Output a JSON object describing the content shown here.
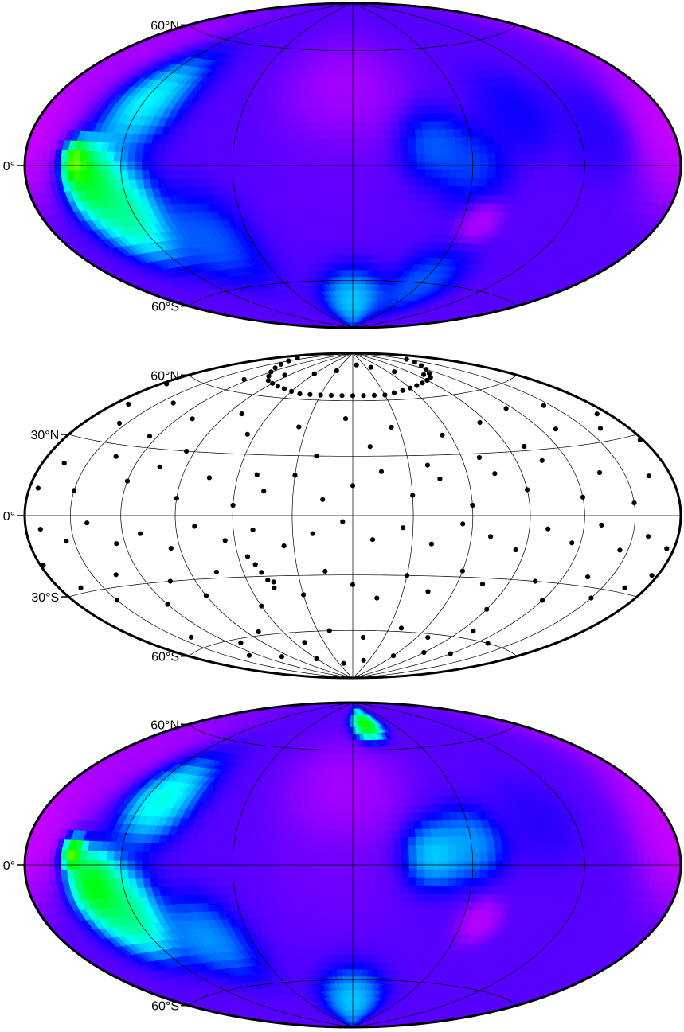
{
  "panels": [
    {
      "id": "top",
      "kind": "gridded-field",
      "lat_labels": [
        "60°N",
        "0°",
        "60°S"
      ],
      "label_lats": [
        60,
        0,
        -60
      ],
      "meridians_deg": [
        -120,
        -60,
        0,
        60,
        120
      ],
      "parallels_deg": [
        -60,
        0,
        60
      ],
      "palette": [
        "#ff00ff",
        "#8000ff",
        "#0000ff",
        "#00ffff",
        "#00ff00",
        "#ffff00",
        "#ff0000"
      ],
      "features": [
        {
          "lon": -175,
          "lat": 15,
          "value": 0.05,
          "spread": 18
        },
        {
          "lon": 175,
          "lat": 10,
          "value": 0.05,
          "spread": 18
        },
        {
          "lon": -160,
          "lat": 45,
          "value": 0.08,
          "spread": 20
        },
        {
          "lon": -148,
          "lat": 2,
          "value": 0.95,
          "spread": 7
        },
        {
          "lon": -140,
          "lat": -5,
          "value": 0.78,
          "spread": 13
        },
        {
          "lon": -125,
          "lat": -20,
          "value": 0.68,
          "spread": 18
        },
        {
          "lon": -120,
          "lat": 30,
          "value": 0.6,
          "spread": 18
        },
        {
          "lon": -85,
          "lat": -35,
          "value": 0.45,
          "spread": 18
        },
        {
          "lon": -5,
          "lat": 35,
          "value": 0.08,
          "spread": 22
        },
        {
          "lon": -10,
          "lat": 0,
          "value": 0.2,
          "spread": 24
        },
        {
          "lon": 40,
          "lat": 10,
          "value": 0.45,
          "spread": 14
        },
        {
          "lon": 60,
          "lat": 0,
          "value": 0.42,
          "spread": 15
        },
        {
          "lon": 90,
          "lat": 25,
          "value": 0.35,
          "spread": 15
        },
        {
          "lon": 70,
          "lat": -27,
          "value": 0.06,
          "spread": 8
        },
        {
          "lon": 130,
          "lat": 15,
          "value": 0.3,
          "spread": 15
        },
        {
          "lon": 0,
          "lat": -72,
          "value": 0.55,
          "spread": 15
        },
        {
          "lon": 60,
          "lat": -60,
          "value": 0.45,
          "spread": 15
        }
      ]
    },
    {
      "id": "middle",
      "kind": "station-points",
      "lat_labels": [
        "60°N",
        "30°N",
        "0°",
        "30°S",
        "60°S"
      ],
      "label_lats": [
        60,
        30,
        0,
        -30,
        -60
      ],
      "meridians_deg": [
        -150,
        -120,
        -90,
        -60,
        -30,
        0,
        30,
        60,
        90,
        120,
        150
      ],
      "parallels_deg": [
        -60,
        -30,
        0,
        30,
        60
      ],
      "point_color": "#000000"
    },
    {
      "id": "bottom",
      "kind": "gridded-field",
      "lat_labels": [
        "60°N",
        "0°",
        "60°S"
      ],
      "label_lats": [
        60,
        0,
        -60
      ],
      "meridians_deg": [
        -120,
        -60,
        0,
        60,
        120
      ],
      "parallels_deg": [
        -60,
        0,
        60
      ],
      "palette": [
        "#ff00ff",
        "#8000ff",
        "#0000ff",
        "#00ffff",
        "#00ff00",
        "#ffff00",
        "#ff0000"
      ],
      "features": [
        {
          "lon": -175,
          "lat": 15,
          "value": 0.05,
          "spread": 18
        },
        {
          "lon": 175,
          "lat": 10,
          "value": 0.05,
          "spread": 18
        },
        {
          "lon": -160,
          "lat": 45,
          "value": 0.08,
          "spread": 20
        },
        {
          "lon": -150,
          "lat": 5,
          "value": 0.98,
          "spread": 6
        },
        {
          "lon": -138,
          "lat": -8,
          "value": 0.8,
          "spread": 12
        },
        {
          "lon": -125,
          "lat": -20,
          "value": 0.7,
          "spread": 17
        },
        {
          "lon": -110,
          "lat": 30,
          "value": 0.62,
          "spread": 16
        },
        {
          "lon": -85,
          "lat": -35,
          "value": 0.5,
          "spread": 16
        },
        {
          "lon": -5,
          "lat": 35,
          "value": 0.08,
          "spread": 22
        },
        {
          "lon": -10,
          "lat": 0,
          "value": 0.18,
          "spread": 24
        },
        {
          "lon": 40,
          "lat": 5,
          "value": 0.55,
          "spread": 13
        },
        {
          "lon": 60,
          "lat": 10,
          "value": 0.5,
          "spread": 14
        },
        {
          "lon": 100,
          "lat": 20,
          "value": 0.3,
          "spread": 15
        },
        {
          "lon": 70,
          "lat": -27,
          "value": 0.05,
          "spread": 8
        },
        {
          "lon": 20,
          "lat": 75,
          "value": 0.85,
          "spread": 8
        },
        {
          "lon": 0,
          "lat": -72,
          "value": 0.55,
          "spread": 15
        }
      ]
    }
  ],
  "stations": [
    [
      -160,
      80
    ],
    [
      -150,
      78
    ],
    [
      -140,
      76
    ],
    [
      -130,
      74
    ],
    [
      -120,
      72
    ],
    [
      -110,
      70
    ],
    [
      -100,
      68
    ],
    [
      -90,
      67
    ],
    [
      -80,
      66
    ],
    [
      -70,
      65
    ],
    [
      -60,
      64
    ],
    [
      -50,
      63
    ],
    [
      -40,
      63
    ],
    [
      -30,
      63
    ],
    [
      -20,
      63
    ],
    [
      -10,
      63
    ],
    [
      0,
      63
    ],
    [
      10,
      63
    ],
    [
      20,
      63
    ],
    [
      30,
      63
    ],
    [
      40,
      64
    ],
    [
      50,
      65
    ],
    [
      60,
      66
    ],
    [
      70,
      67
    ],
    [
      80,
      68
    ],
    [
      90,
      69
    ],
    [
      100,
      70
    ],
    [
      110,
      72
    ],
    [
      120,
      74
    ],
    [
      130,
      76
    ],
    [
      140,
      78
    ],
    [
      150,
      80
    ],
    [
      -125,
      66
    ],
    [
      -95,
      72
    ],
    [
      -60,
      75
    ],
    [
      -30,
      78
    ],
    [
      10,
      82
    ],
    [
      40,
      80
    ],
    [
      70,
      76
    ],
    [
      100,
      72
    ],
    [
      -170,
      45
    ],
    [
      -155,
      38
    ],
    [
      -140,
      50
    ],
    [
      -125,
      35
    ],
    [
      -110,
      45
    ],
    [
      -95,
      30
    ],
    [
      -80,
      50
    ],
    [
      -65,
      40
    ],
    [
      -50,
      20
    ],
    [
      -35,
      45
    ],
    [
      -20,
      30
    ],
    [
      -5,
      50
    ],
    [
      10,
      35
    ],
    [
      25,
      45
    ],
    [
      40,
      25
    ],
    [
      55,
      40
    ],
    [
      70,
      28
    ],
    [
      85,
      45
    ],
    [
      100,
      32
    ],
    [
      115,
      50
    ],
    [
      130,
      38
    ],
    [
      145,
      48
    ],
    [
      160,
      35
    ],
    [
      172,
      40
    ],
    [
      -165,
      20
    ],
    [
      -150,
      10
    ],
    [
      -135,
      25
    ],
    [
      -120,
      15
    ],
    [
      -105,
      22
    ],
    [
      -90,
      8
    ],
    [
      -75,
      18
    ],
    [
      -60,
      5
    ],
    [
      -45,
      12
    ],
    [
      -30,
      20
    ],
    [
      -15,
      8
    ],
    [
      0,
      15
    ],
    [
      15,
      22
    ],
    [
      30,
      10
    ],
    [
      45,
      18
    ],
    [
      60,
      5
    ],
    [
      75,
      20
    ],
    [
      90,
      12
    ],
    [
      105,
      25
    ],
    [
      120,
      8
    ],
    [
      135,
      18
    ],
    [
      150,
      5
    ],
    [
      165,
      15
    ],
    [
      -170,
      -5
    ],
    [
      -155,
      -10
    ],
    [
      -140,
      -3
    ],
    [
      -125,
      -12
    ],
    [
      -110,
      -8
    ],
    [
      -95,
      -15
    ],
    [
      -80,
      -5
    ],
    [
      -65,
      -12
    ],
    [
      -50,
      -7
    ],
    [
      -35,
      -15
    ],
    [
      -20,
      -9
    ],
    [
      -5,
      -3
    ],
    [
      10,
      -12
    ],
    [
      25,
      -6
    ],
    [
      40,
      -14
    ],
    [
      55,
      -4
    ],
    [
      70,
      -10
    ],
    [
      85,
      -16
    ],
    [
      100,
      -6
    ],
    [
      115,
      -12
    ],
    [
      130,
      -4
    ],
    [
      145,
      -14
    ],
    [
      160,
      -8
    ],
    [
      175,
      -12
    ],
    [
      -165,
      -28
    ],
    [
      -150,
      -35
    ],
    [
      -135,
      -25
    ],
    [
      -120,
      -40
    ],
    [
      -105,
      -30
    ],
    [
      -90,
      -38
    ],
    [
      -75,
      -27
    ],
    [
      -60,
      -45
    ],
    [
      -45,
      -33
    ],
    [
      -30,
      -40
    ],
    [
      -15,
      -28
    ],
    [
      0,
      -35
    ],
    [
      15,
      -42
    ],
    [
      30,
      -30
    ],
    [
      45,
      -38
    ],
    [
      60,
      -27
    ],
    [
      75,
      -33
    ],
    [
      90,
      -45
    ],
    [
      105,
      -30
    ],
    [
      120,
      -38
    ],
    [
      135,
      -26
    ],
    [
      150,
      -34
    ],
    [
      165,
      -28
    ],
    [
      -140,
      -55
    ],
    [
      -110,
      -62
    ],
    [
      -80,
      -58
    ],
    [
      -50,
      -66
    ],
    [
      -20,
      -60
    ],
    [
      10,
      -64
    ],
    [
      40,
      -58
    ],
    [
      70,
      -62
    ],
    [
      100,
      -56
    ],
    [
      130,
      -60
    ],
    [
      -100,
      -72
    ],
    [
      -60,
      -76
    ],
    [
      -20,
      -80
    ],
    [
      20,
      -78
    ],
    [
      60,
      -74
    ],
    [
      90,
      -70
    ],
    [
      -130,
      -68
    ],
    [
      120,
      -68
    ],
    [
      -55,
      -20
    ],
    [
      -52,
      -24
    ],
    [
      -50,
      -28
    ],
    [
      -48,
      -32
    ],
    [
      -46,
      -36
    ],
    [
      -176,
      55
    ],
    [
      178,
      28
    ],
    [
      176,
      -22
    ],
    [
      -178,
      -18
    ],
    [
      -174,
      10
    ]
  ]
}
